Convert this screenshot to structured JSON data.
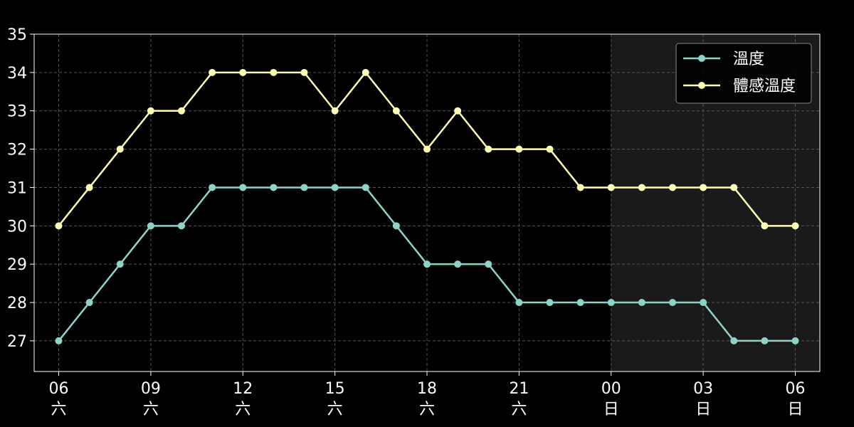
{
  "chart_data": {
    "type": "line",
    "x_ticks": [
      {
        "index": 0,
        "time": "06",
        "day": "六"
      },
      {
        "index": 3,
        "time": "09",
        "day": "六"
      },
      {
        "index": 6,
        "time": "12",
        "day": "六"
      },
      {
        "index": 9,
        "time": "15",
        "day": "六"
      },
      {
        "index": 12,
        "time": "18",
        "day": "六"
      },
      {
        "index": 15,
        "time": "21",
        "day": "六"
      },
      {
        "index": 18,
        "time": "00",
        "day": "日"
      },
      {
        "index": 21,
        "time": "03",
        "day": "日"
      },
      {
        "index": 24,
        "time": "06",
        "day": "日"
      }
    ],
    "y_ticks": [
      27,
      28,
      29,
      30,
      31,
      32,
      33,
      34,
      35
    ],
    "ylim": [
      26.2,
      35
    ],
    "xlim": [
      -0.8,
      24.8
    ],
    "grid": true,
    "legend_position": "top-right",
    "night_shade_start_index": 18,
    "series": [
      {
        "name": "溫度",
        "color": "#8dd3c7",
        "values": [
          27,
          28,
          29,
          30,
          30,
          31,
          31,
          31,
          31,
          31,
          31,
          30,
          29,
          29,
          29,
          28,
          28,
          28,
          28,
          28,
          28,
          28,
          27,
          27,
          27
        ]
      },
      {
        "name": "體感溫度",
        "color": "#ffffb3",
        "values": [
          30,
          31,
          32,
          33,
          33,
          34,
          34,
          34,
          34,
          33,
          34,
          33,
          32,
          33,
          32,
          32,
          32,
          31,
          31,
          31,
          31,
          31,
          31,
          30,
          30
        ]
      }
    ],
    "colors": {
      "background": "#000000",
      "night_shade": "#1a1a1a",
      "axis": "#ffffff",
      "grid": "#555555"
    }
  }
}
